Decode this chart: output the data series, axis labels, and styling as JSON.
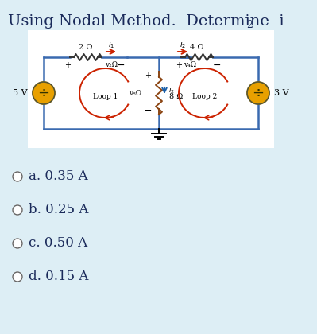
{
  "bg_color": "#ddeef5",
  "circuit_bg": "#ffffff",
  "title_main": "Using Nodal Method.  Determine  i",
  "title_sub": "2",
  "options": [
    "a. 0.35 A",
    "b. 0.25 A",
    "c. 0.50 A",
    "d. 0.15 A"
  ],
  "option_fontsize": 12,
  "title_fontsize": 14,
  "wire_color": "#3a6ab0",
  "resistor_color": "#333333",
  "res8_color": "#8B4513",
  "source_color": "#e8a000",
  "loop_color": "#cc2200",
  "arrow_color": "#cc2200"
}
